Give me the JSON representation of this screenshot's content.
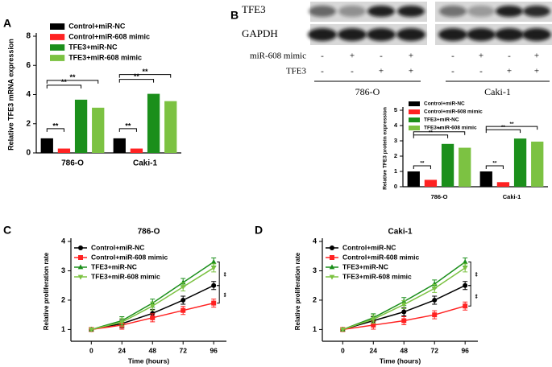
{
  "chart_data": [
    {
      "type": "bar",
      "label": "A",
      "ylabel": "Relative TFE3 mRNA expression",
      "categories": [
        "786-O",
        "Caki-1"
      ],
      "series": [
        {
          "name": "Control+miR-NC",
          "color": "#000000",
          "values": [
            1.0,
            1.0
          ]
        },
        {
          "name": "Control+miR-608 mimic",
          "color": "#ff2222",
          "values": [
            0.3,
            0.3
          ]
        },
        {
          "name": "TFE3+miR-NC",
          "color": "#1b8f1b",
          "values": [
            3.65,
            4.05
          ]
        },
        {
          "name": "TFE3+miR-608 mimic",
          "color": "#7cc242",
          "values": [
            3.1,
            3.55
          ]
        }
      ],
      "ylim": [
        0,
        8
      ],
      "yticks": [
        0,
        2,
        4,
        6,
        8
      ],
      "annotations": [
        "**",
        "**",
        "**",
        "**",
        "**",
        "**"
      ]
    },
    {
      "type": "bar",
      "label": "B",
      "ylabel": "Relative TFE3 protein expression",
      "categories": [
        "786-O",
        "Caki-1"
      ],
      "series": [
        {
          "name": "Control+miR-NC",
          "color": "#000000",
          "values": [
            1.0,
            1.0
          ]
        },
        {
          "name": "Control+miR-608 mimic",
          "color": "#ff2222",
          "values": [
            0.45,
            0.3
          ]
        },
        {
          "name": "TFE3+miR-NC",
          "color": "#1b8f1b",
          "values": [
            2.8,
            3.15
          ]
        },
        {
          "name": "TFE3+miR-608 mimic",
          "color": "#7cc242",
          "values": [
            2.55,
            2.95
          ]
        }
      ],
      "ylim": [
        0,
        5
      ],
      "yticks": [
        0,
        1,
        2,
        3,
        4,
        5
      ],
      "annotations": [
        "**",
        "**",
        "**",
        "**",
        "**",
        "**"
      ]
    },
    {
      "type": "line",
      "label": "C",
      "title": "786-O",
      "xlabel": "Time (hours)",
      "ylabel": "Relative proliferation rate",
      "x": [
        0,
        24,
        48,
        72,
        96
      ],
      "series": [
        {
          "name": "Control+miR-NC",
          "color": "#000000",
          "values": [
            1,
            1.2,
            1.55,
            2.0,
            2.5
          ]
        },
        {
          "name": "Control+miR-608 mimic",
          "color": "#ff2222",
          "values": [
            1,
            1.15,
            1.4,
            1.65,
            1.9
          ]
        },
        {
          "name": "TFE3+miR-NC",
          "color": "#1b8f1b",
          "values": [
            1,
            1.3,
            1.9,
            2.6,
            3.3
          ]
        },
        {
          "name": "TFE3+miR-608 mimic",
          "color": "#7cc242",
          "values": [
            1,
            1.25,
            1.8,
            2.45,
            3.1
          ]
        }
      ],
      "xlim": [
        -16,
        106
      ],
      "xticks": [
        0,
        24,
        48,
        72,
        96
      ],
      "ylim": [
        0.6,
        4
      ],
      "yticks": [
        1,
        2,
        3,
        4
      ],
      "annotations": [
        "**",
        "**"
      ]
    },
    {
      "type": "line",
      "label": "D",
      "title": "Caki-1",
      "xlabel": "Time (hours)",
      "ylabel": "Relative proliferation rate",
      "x": [
        0,
        24,
        48,
        72,
        96
      ],
      "series": [
        {
          "name": "Control+miR-NC",
          "color": "#000000",
          "values": [
            1,
            1.3,
            1.6,
            2.0,
            2.5
          ]
        },
        {
          "name": "Control+miR-608 mimic",
          "color": "#ff2222",
          "values": [
            1,
            1.15,
            1.3,
            1.5,
            1.8
          ]
        },
        {
          "name": "TFE3+miR-NC",
          "color": "#1b8f1b",
          "values": [
            1,
            1.4,
            1.95,
            2.55,
            3.3
          ]
        },
        {
          "name": "TFE3+miR-608 mimic",
          "color": "#7cc242",
          "values": [
            1,
            1.35,
            1.85,
            2.4,
            3.1
          ]
        }
      ],
      "xlim": [
        -16,
        106
      ],
      "xticks": [
        0,
        24,
        48,
        72,
        96
      ],
      "ylim": [
        0.6,
        4
      ],
      "yticks": [
        1,
        2,
        3,
        4
      ],
      "annotations": [
        "**",
        "**"
      ]
    }
  ],
  "blot": {
    "bands": [
      "TFE3",
      "GAPDH"
    ],
    "rows": [
      {
        "label": "miR-608 mimic",
        "signs": [
          "-",
          "+",
          "-",
          "+",
          "-",
          "+",
          "-",
          "+"
        ]
      },
      {
        "label": "TFE3",
        "signs": [
          "-",
          "-",
          "+",
          "+",
          "-",
          "-",
          "+",
          "+"
        ]
      }
    ],
    "groups": [
      "786-O",
      "Caki-1"
    ]
  }
}
